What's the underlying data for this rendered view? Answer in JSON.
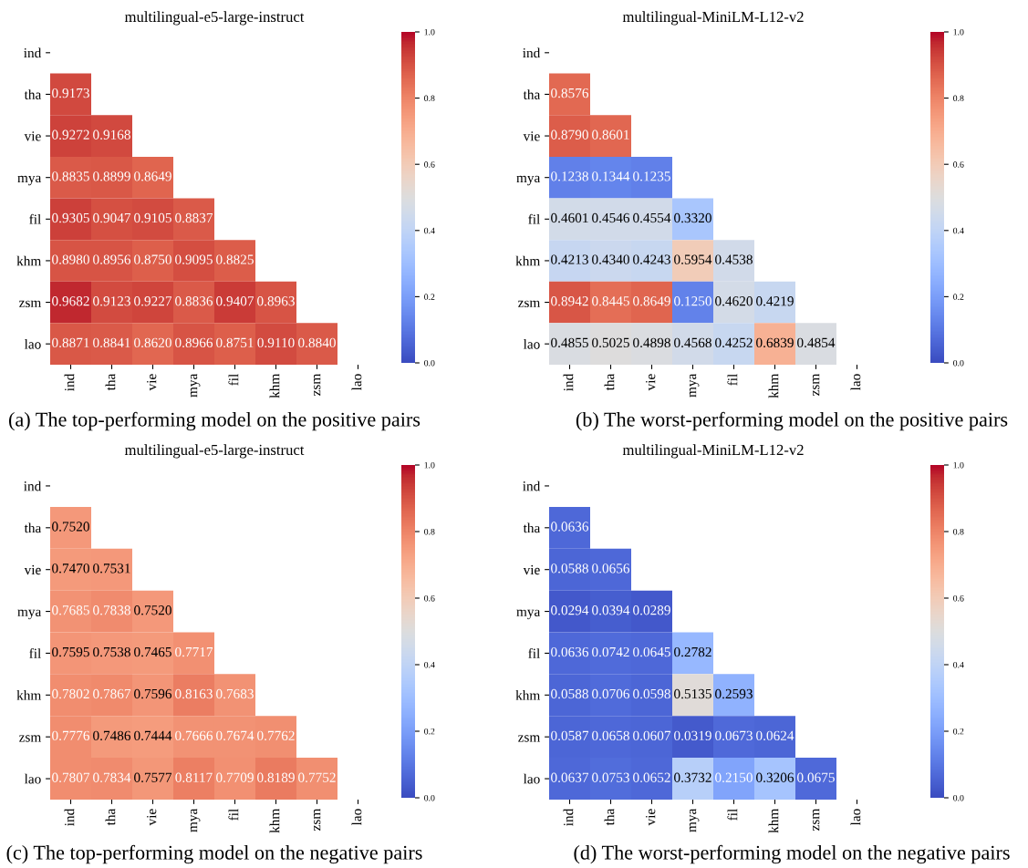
{
  "chart_data": [
    {
      "type": "heatmap",
      "title": "multilingual-e5-large-instruct",
      "annotations": [
        "(a) The top-performing model on the positive pairs"
      ],
      "categories": [
        "ind",
        "tha",
        "vie",
        "mya",
        "fil",
        "khm",
        "zsm",
        "lao"
      ],
      "y_categories": [
        "ind",
        "tha",
        "vie",
        "mya",
        "fil",
        "khm",
        "zsm",
        "lao"
      ],
      "clim": [
        0,
        1
      ],
      "cticks": [
        {
          "value": 0,
          "label": "0.0"
        },
        {
          "value": 0.2,
          "label": "0.2"
        },
        {
          "value": 0.4,
          "label": "0.4"
        },
        {
          "value": 0.6,
          "label": "0.6"
        },
        {
          "value": 0.8,
          "label": "0.8"
        },
        {
          "value": 1,
          "label": "1.0"
        }
      ],
      "data_labels": true,
      "cells": [
        [
          null,
          null,
          null,
          null,
          null,
          null,
          null,
          null
        ],
        [
          0.9173,
          null,
          null,
          null,
          null,
          null,
          null,
          null
        ],
        [
          0.9272,
          0.9168,
          null,
          null,
          null,
          null,
          null,
          null
        ],
        [
          0.8835,
          0.8899,
          0.8649,
          null,
          null,
          null,
          null,
          null
        ],
        [
          0.9305,
          0.9047,
          0.9105,
          0.8837,
          null,
          null,
          null,
          null
        ],
        [
          0.898,
          0.8956,
          0.875,
          0.9095,
          0.8825,
          null,
          null,
          null
        ],
        [
          0.9682,
          0.9123,
          0.9227,
          0.8836,
          0.9407,
          0.8963,
          null,
          null
        ],
        [
          0.8871,
          0.8841,
          0.862,
          0.8966,
          0.8751,
          0.911,
          0.884,
          null
        ]
      ],
      "cell_labels": [
        [
          null,
          null,
          null,
          null,
          null,
          null,
          null,
          null
        ],
        [
          "0.9173",
          null,
          null,
          null,
          null,
          null,
          null,
          null
        ],
        [
          "0.9272",
          "0.9168",
          null,
          null,
          null,
          null,
          null,
          null
        ],
        [
          "0.8835",
          "0.8899",
          "0.8649",
          null,
          null,
          null,
          null,
          null
        ],
        [
          "0.9305",
          "0.9047",
          "0.9105",
          "0.8837",
          null,
          null,
          null,
          null
        ],
        [
          "0.8980",
          "0.8956",
          "0.8750",
          "0.9095",
          "0.8825",
          null,
          null,
          null
        ],
        [
          "0.9682",
          "0.9123",
          "0.9227",
          "0.8836",
          "0.9407",
          "0.8963",
          null,
          null
        ],
        [
          "0.8871",
          "0.8841",
          "0.8620",
          "0.8966",
          "0.8751",
          "0.9110",
          "0.8840",
          null
        ]
      ]
    },
    {
      "type": "heatmap",
      "title": "multilingual-MiniLM-L12-v2",
      "annotations": [
        "(b) The worst-performing model on the positive pairs"
      ],
      "categories": [
        "ind",
        "tha",
        "vie",
        "mya",
        "fil",
        "khm",
        "zsm",
        "lao"
      ],
      "y_categories": [
        "ind",
        "tha",
        "vie",
        "mya",
        "fil",
        "khm",
        "zsm",
        "lao"
      ],
      "clim": [
        0,
        1
      ],
      "cticks": [
        {
          "value": 0,
          "label": "0.0"
        },
        {
          "value": 0.2,
          "label": "0.2"
        },
        {
          "value": 0.4,
          "label": "0.4"
        },
        {
          "value": 0.6,
          "label": "0.6"
        },
        {
          "value": 0.8,
          "label": "0.8"
        },
        {
          "value": 1,
          "label": "1.0"
        }
      ],
      "data_labels": true,
      "cells": [
        [
          null,
          null,
          null,
          null,
          null,
          null,
          null,
          null
        ],
        [
          0.8576,
          null,
          null,
          null,
          null,
          null,
          null,
          null
        ],
        [
          0.879,
          0.8601,
          null,
          null,
          null,
          null,
          null,
          null
        ],
        [
          0.1238,
          0.1344,
          0.1235,
          null,
          null,
          null,
          null,
          null
        ],
        [
          0.4601,
          0.4546,
          0.4554,
          0.332,
          null,
          null,
          null,
          null
        ],
        [
          0.4213,
          0.434,
          0.4243,
          0.5954,
          0.4538,
          null,
          null,
          null
        ],
        [
          0.8942,
          0.8445,
          0.8649,
          0.125,
          0.462,
          0.4219,
          null,
          null
        ],
        [
          0.4855,
          0.5025,
          0.4898,
          0.4568,
          0.4252,
          0.6839,
          0.4854,
          null
        ]
      ],
      "cell_labels": [
        [
          null,
          null,
          null,
          null,
          null,
          null,
          null,
          null
        ],
        [
          "0.8576",
          null,
          null,
          null,
          null,
          null,
          null,
          null
        ],
        [
          "0.8790",
          "0.8601",
          null,
          null,
          null,
          null,
          null,
          null
        ],
        [
          "0.1238",
          "0.1344",
          "0.1235",
          null,
          null,
          null,
          null,
          null
        ],
        [
          "0.4601",
          "0.4546",
          "0.4554",
          "0.3320",
          null,
          null,
          null,
          null
        ],
        [
          "0.4213",
          "0.4340",
          "0.4243",
          "0.5954",
          "0.4538",
          null,
          null,
          null
        ],
        [
          "0.8942",
          "0.8445",
          "0.8649",
          "0.1250",
          "0.4620",
          "0.4219",
          null,
          null
        ],
        [
          "0.4855",
          "0.5025",
          "0.4898",
          "0.4568",
          "0.4252",
          "0.6839",
          "0.4854",
          null
        ]
      ]
    },
    {
      "type": "heatmap",
      "title": "multilingual-e5-large-instruct",
      "annotations": [
        "(c) The top-performing model on the negative pairs"
      ],
      "categories": [
        "ind",
        "tha",
        "vie",
        "mya",
        "fil",
        "khm",
        "zsm",
        "lao"
      ],
      "y_categories": [
        "ind",
        "tha",
        "vie",
        "mya",
        "fil",
        "khm",
        "zsm",
        "lao"
      ],
      "clim": [
        0,
        1
      ],
      "cticks": [
        {
          "value": 0,
          "label": "0.0"
        },
        {
          "value": 0.2,
          "label": "0.2"
        },
        {
          "value": 0.4,
          "label": "0.4"
        },
        {
          "value": 0.6,
          "label": "0.6"
        },
        {
          "value": 0.8,
          "label": "0.8"
        },
        {
          "value": 1,
          "label": "1.0"
        }
      ],
      "data_labels": true,
      "cells": [
        [
          null,
          null,
          null,
          null,
          null,
          null,
          null,
          null
        ],
        [
          0.752,
          null,
          null,
          null,
          null,
          null,
          null,
          null
        ],
        [
          0.747,
          0.7531,
          null,
          null,
          null,
          null,
          null,
          null
        ],
        [
          0.7685,
          0.7838,
          0.752,
          null,
          null,
          null,
          null,
          null
        ],
        [
          0.7595,
          0.7538,
          0.7465,
          0.7717,
          null,
          null,
          null,
          null
        ],
        [
          0.7802,
          0.7867,
          0.7596,
          0.8163,
          0.7683,
          null,
          null,
          null
        ],
        [
          0.7776,
          0.7486,
          0.7444,
          0.7666,
          0.7674,
          0.7762,
          null,
          null
        ],
        [
          0.7807,
          0.7834,
          0.7577,
          0.8117,
          0.7709,
          0.8189,
          0.7752,
          null
        ]
      ],
      "cell_labels": [
        [
          null,
          null,
          null,
          null,
          null,
          null,
          null,
          null
        ],
        [
          "0.7520",
          null,
          null,
          null,
          null,
          null,
          null,
          null
        ],
        [
          "0.7470",
          "0.7531",
          null,
          null,
          null,
          null,
          null,
          null
        ],
        [
          "0.7685",
          "0.7838",
          "0.7520",
          null,
          null,
          null,
          null,
          null
        ],
        [
          "0.7595",
          "0.7538",
          "0.7465",
          "0.7717",
          null,
          null,
          null,
          null
        ],
        [
          "0.7802",
          "0.7867",
          "0.7596",
          "0.8163",
          "0.7683",
          null,
          null,
          null
        ],
        [
          "0.7776",
          "0.7486",
          "0.7444",
          "0.7666",
          "0.7674",
          "0.7762",
          null,
          null
        ],
        [
          "0.7807",
          "0.7834",
          "0.7577",
          "0.8117",
          "0.7709",
          "0.8189",
          "0.7752",
          null
        ]
      ]
    },
    {
      "type": "heatmap",
      "title": "multilingual-MiniLM-L12-v2",
      "annotations": [
        "(d) The worst-performing model on the negative pairs"
      ],
      "categories": [
        "ind",
        "tha",
        "vie",
        "mya",
        "fil",
        "khm",
        "zsm",
        "lao"
      ],
      "y_categories": [
        "ind",
        "tha",
        "vie",
        "mya",
        "fil",
        "khm",
        "zsm",
        "lao"
      ],
      "clim": [
        0,
        1
      ],
      "cticks": [
        {
          "value": 0,
          "label": "0.0"
        },
        {
          "value": 0.2,
          "label": "0.2"
        },
        {
          "value": 0.4,
          "label": "0.4"
        },
        {
          "value": 0.6,
          "label": "0.6"
        },
        {
          "value": 0.8,
          "label": "0.8"
        },
        {
          "value": 1,
          "label": "1.0"
        }
      ],
      "data_labels": true,
      "cells": [
        [
          null,
          null,
          null,
          null,
          null,
          null,
          null,
          null
        ],
        [
          0.0636,
          null,
          null,
          null,
          null,
          null,
          null,
          null
        ],
        [
          0.0588,
          0.0656,
          null,
          null,
          null,
          null,
          null,
          null
        ],
        [
          0.0294,
          0.0394,
          0.0289,
          null,
          null,
          null,
          null,
          null
        ],
        [
          0.0636,
          0.0742,
          0.0645,
          0.2782,
          null,
          null,
          null,
          null
        ],
        [
          0.0588,
          0.0706,
          0.0598,
          0.5135,
          0.2593,
          null,
          null,
          null
        ],
        [
          0.0587,
          0.0658,
          0.0607,
          0.0319,
          0.0673,
          0.0624,
          null,
          null
        ],
        [
          0.0637,
          0.0753,
          0.0652,
          0.3732,
          0.215,
          0.3206,
          0.0675,
          null
        ]
      ],
      "cell_labels": [
        [
          null,
          null,
          null,
          null,
          null,
          null,
          null,
          null
        ],
        [
          "0.0636",
          null,
          null,
          null,
          null,
          null,
          null,
          null
        ],
        [
          "0.0588",
          "0.0656",
          null,
          null,
          null,
          null,
          null,
          null
        ],
        [
          "0.0294",
          "0.0394",
          "0.0289",
          null,
          null,
          null,
          null,
          null
        ],
        [
          "0.0636",
          "0.0742",
          "0.0645",
          "0.2782",
          null,
          null,
          null,
          null
        ],
        [
          "0.0588",
          "0.0706",
          "0.0598",
          "0.5135",
          "0.2593",
          null,
          null,
          null
        ],
        [
          "0.0587",
          "0.0658",
          "0.0607",
          "0.0319",
          "0.0673",
          "0.0624",
          null,
          null
        ],
        [
          "0.0637",
          "0.0753",
          "0.0652",
          "0.3732",
          "0.2150",
          "0.3206",
          "0.0675",
          null
        ]
      ]
    }
  ]
}
